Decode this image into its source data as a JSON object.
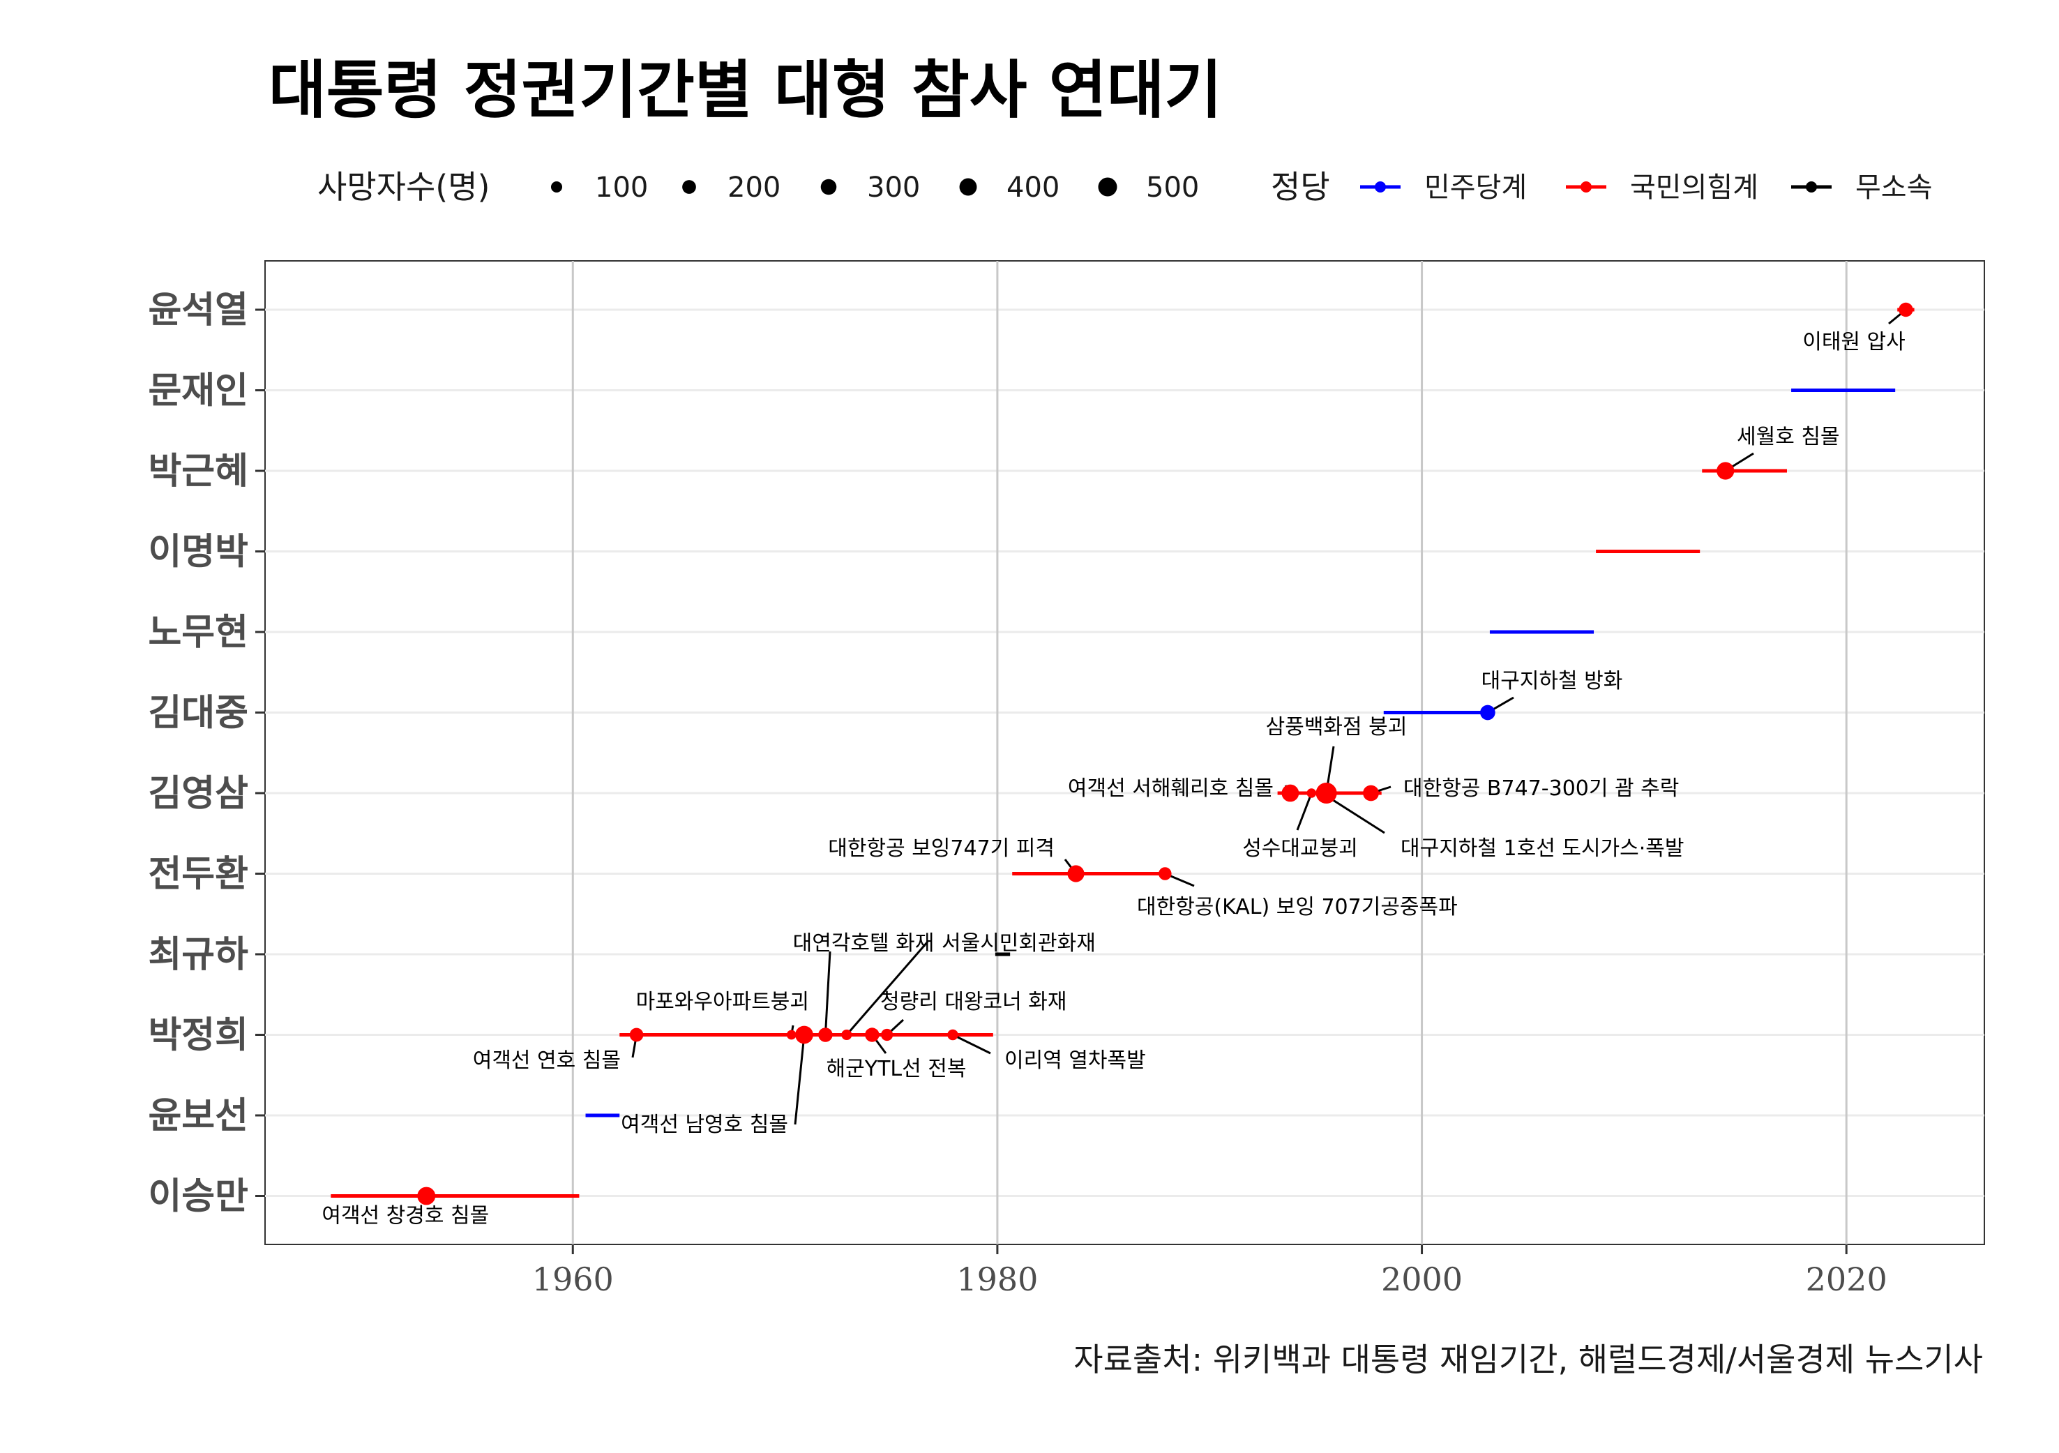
{
  "chart_data": {
    "type": "timeline",
    "title": "대통령 정권기간별 대형 참사 연대기",
    "caption": "자료출처: 위키백과 대통령 재임기간, 해럴드경제/서울경제 뉴스기사",
    "xlim": [
      1945.5,
      2026.5
    ],
    "x_ticks": [
      1960,
      1980,
      2000,
      2020
    ],
    "x_tick_labels": [
      "1960",
      "1980",
      "2000",
      "2020"
    ],
    "grid": true,
    "legend_position": "top",
    "size_legend": {
      "title": "사망자수(명)",
      "values": [
        100,
        200,
        300,
        400,
        500
      ],
      "labels": [
        "100",
        "200",
        "300",
        "400",
        "500"
      ]
    },
    "color_legend": {
      "title": "정당",
      "items": [
        {
          "name": "민주당계",
          "color": "#0000ff"
        },
        {
          "name": "국민의힘계",
          "color": "#ff0000"
        },
        {
          "name": "무소속",
          "color": "#000000"
        }
      ]
    },
    "categories": [
      "이승만",
      "윤보선",
      "박정희",
      "최규하",
      "전두환",
      "김영삼",
      "김대중",
      "노무현",
      "이명박",
      "박근혜",
      "문재인",
      "윤석열"
    ],
    "terms": [
      {
        "president": "이승만",
        "start": 1948.6,
        "end": 1960.3,
        "party": "국민의힘계"
      },
      {
        "president": "윤보선",
        "start": 1960.6,
        "end": 1962.2,
        "party": "민주당계"
      },
      {
        "president": "박정희",
        "start": 1962.2,
        "end": 1979.8,
        "party": "국민의힘계"
      },
      {
        "president": "최규하",
        "start": 1979.9,
        "end": 1980.6,
        "party": "무소속"
      },
      {
        "president": "전두환",
        "start": 1980.7,
        "end": 1988.1,
        "party": "국민의힘계"
      },
      {
        "president": "김영삼",
        "start": 1993.2,
        "end": 1998.1,
        "party": "국민의힘계"
      },
      {
        "president": "김대중",
        "start": 1998.2,
        "end": 2003.1,
        "party": "민주당계"
      },
      {
        "president": "노무현",
        "start": 2003.2,
        "end": 2008.1,
        "party": "민주당계"
      },
      {
        "president": "이명박",
        "start": 2008.2,
        "end": 2013.1,
        "party": "국민의힘계"
      },
      {
        "president": "박근혜",
        "start": 2013.2,
        "end": 2017.2,
        "party": "국민의힘계"
      },
      {
        "president": "문재인",
        "start": 2017.4,
        "end": 2022.3,
        "party": "민주당계"
      },
      {
        "president": "윤석열",
        "start": 2022.4,
        "end": 2023.2,
        "party": "국민의힘계"
      }
    ],
    "disasters": [
      {
        "name": "여객선 창경호 침몰",
        "president": "이승만",
        "year": 1953.1,
        "deaths": 330
      },
      {
        "name": "여객선 남영호 침몰",
        "president": "박정희",
        "year": 1970.9,
        "deaths": 326
      },
      {
        "name": "여객선 연호 침몰",
        "president": "박정희",
        "year": 1963.0,
        "deaths": 140
      },
      {
        "name": "마포와우아파트붕괴",
        "president": "박정희",
        "year": 1970.3,
        "deaths": 34
      },
      {
        "name": "대연각호텔 화재",
        "president": "박정희",
        "year": 1971.9,
        "deaths": 163
      },
      {
        "name": "서울시민회관화재",
        "president": "박정희",
        "year": 1972.9,
        "deaths": 51
      },
      {
        "name": "청량리 대왕코너 화재",
        "president": "박정희",
        "year": 1974.8,
        "deaths": 88
      },
      {
        "name": "해군YTL선 전복",
        "president": "박정희",
        "year": 1974.1,
        "deaths": 159
      },
      {
        "name": "이리역 열차폭발",
        "president": "박정희",
        "year": 1977.9,
        "deaths": 59
      },
      {
        "name": "대한항공 보잉747기 피격",
        "president": "전두환",
        "year": 1983.7,
        "deaths": 269
      },
      {
        "name": "대한항공(KAL) 보잉 707기공중폭파",
        "president": "전두환",
        "year": 1987.9,
        "deaths": 115
      },
      {
        "name": "여객선 서해훼리호 침몰",
        "president": "김영삼",
        "year": 1993.8,
        "deaths": 292
      },
      {
        "name": "성수대교붕괴",
        "president": "김영삼",
        "year": 1994.8,
        "deaths": 32
      },
      {
        "name": "대구지하철 1호선 도시가스·폭발",
        "president": "김영삼",
        "year": 1995.3,
        "deaths": 101
      },
      {
        "name": "삼풍백화점 붕괴",
        "president": "김영삼",
        "year": 1995.5,
        "deaths": 502
      },
      {
        "name": "대한항공 B747-300기 괌 추락",
        "president": "김영삼",
        "year": 1997.6,
        "deaths": 228
      },
      {
        "name": "대구지하철 방화",
        "president": "김대중",
        "year": 2003.1,
        "deaths": 192
      },
      {
        "name": "세월호 침몰",
        "president": "박근혜",
        "year": 2014.3,
        "deaths": 304
      },
      {
        "name": "이태원 압사",
        "president": "윤석열",
        "year": 2022.8,
        "deaths": 159
      }
    ]
  }
}
